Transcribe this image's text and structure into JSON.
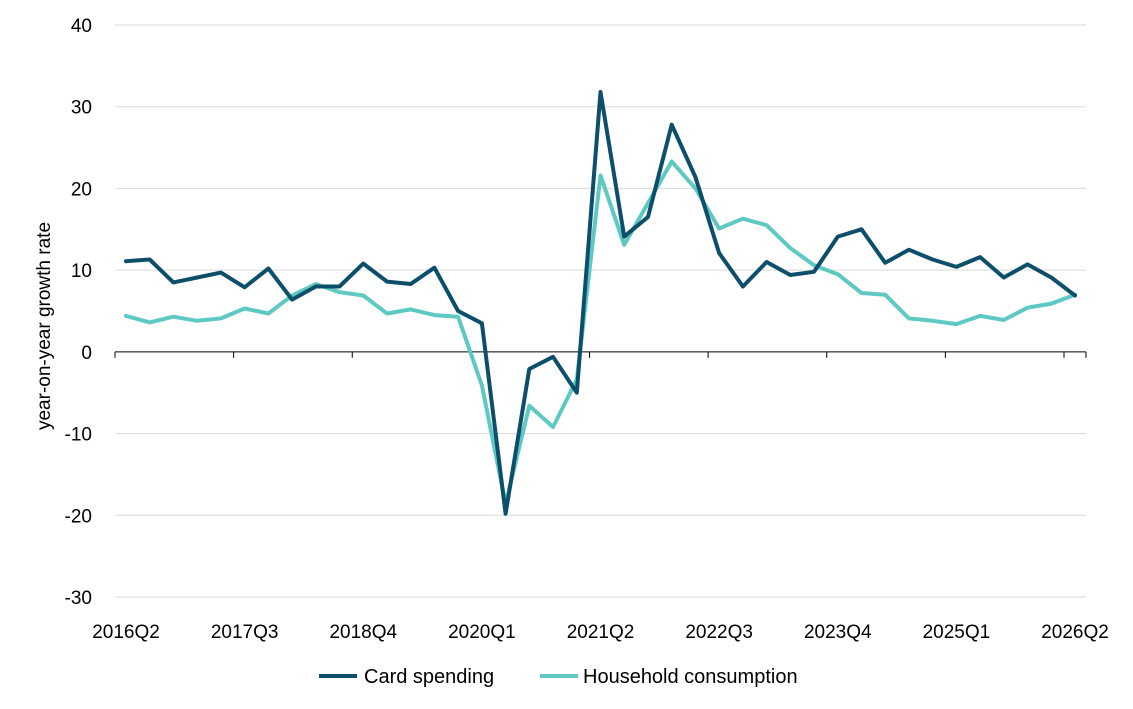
{
  "chart_data": {
    "type": "line",
    "title": "",
    "xlabel": "",
    "ylabel": "year-on-year growth rate",
    "ylim": [
      -30,
      40
    ],
    "yticks": [
      -30,
      -20,
      -10,
      0,
      10,
      20,
      30,
      40
    ],
    "grid": true,
    "legend_position": "bottom",
    "x": [
      "2016Q2",
      "2016Q3",
      "2016Q4",
      "2017Q1",
      "2017Q2",
      "2017Q3",
      "2017Q4",
      "2018Q1",
      "2018Q2",
      "2018Q3",
      "2018Q4",
      "2019Q1",
      "2019Q2",
      "2019Q3",
      "2019Q4",
      "2020Q1",
      "2020Q2",
      "2020Q3",
      "2020Q4",
      "2021Q1",
      "2021Q2",
      "2021Q3",
      "2021Q4",
      "2022Q1",
      "2022Q2",
      "2022Q3",
      "2022Q4",
      "2023Q1",
      "2023Q2",
      "2023Q3",
      "2023Q4",
      "2024Q1",
      "2024Q2",
      "2024Q3",
      "2024Q4",
      "2025Q1",
      "2025Q2",
      "2025Q3",
      "2025Q4",
      "2026Q1",
      "2026Q2"
    ],
    "x_tick_labels": [
      "2016Q2",
      "2017Q3",
      "2018Q4",
      "2020Q1",
      "2021Q2",
      "2022Q3",
      "2023Q4",
      "2025Q1",
      "2026Q2"
    ],
    "series": [
      {
        "name": "Card spending",
        "color": "#0d4f6b",
        "values": [
          11.1,
          11.3,
          8.5,
          9.1,
          9.7,
          7.9,
          10.2,
          6.4,
          8.0,
          8.0,
          10.8,
          8.6,
          8.3,
          10.3,
          5.0,
          3.5,
          -19.8,
          -2.1,
          -0.6,
          -5.0,
          31.8,
          14.1,
          16.5,
          27.8,
          21.4,
          12.1,
          8.0,
          11.0,
          9.4,
          9.8,
          14.1,
          15.0,
          10.9,
          12.5,
          11.3,
          10.4,
          11.6,
          9.1,
          10.7,
          9.1,
          6.9
        ]
      },
      {
        "name": "Household consumption",
        "color": "#5ec9c2",
        "values": [
          4.4,
          3.6,
          4.3,
          3.8,
          4.1,
          5.3,
          4.7,
          6.9,
          8.3,
          7.3,
          6.9,
          4.7,
          5.2,
          4.5,
          4.3,
          -4.1,
          -18.6,
          -6.6,
          -9.2,
          -3.4,
          21.6,
          13.1,
          18.2,
          23.3,
          20.0,
          15.1,
          16.3,
          15.5,
          12.7,
          10.6,
          9.5,
          7.2,
          7.0,
          4.1,
          3.8,
          3.4,
          4.4,
          3.9,
          5.4,
          5.9,
          7.0
        ]
      }
    ]
  }
}
